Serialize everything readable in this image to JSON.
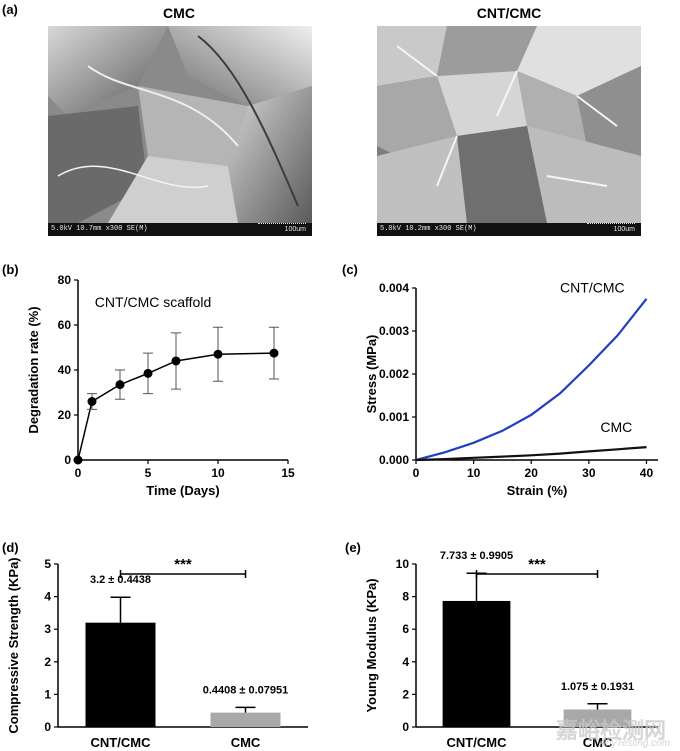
{
  "panel_a": {
    "label": "(a)",
    "images": [
      {
        "title": "CMC",
        "info": "5.0kV 10.7mm x300 SE(M)",
        "scale": "100um"
      },
      {
        "title": "CNT/CMC",
        "info": "5.0kV 10.2mm x300 SE(M)",
        "scale": "100um"
      }
    ]
  },
  "chart_data": [
    {
      "panel": "(b)",
      "type": "line",
      "annotation": "CNT/CMC scaffold",
      "xlabel": "Time (Days)",
      "ylabel": "Degradation rate (%)",
      "xlim": [
        0,
        15
      ],
      "ylim": [
        0,
        80
      ],
      "xticks": [
        0,
        5,
        10,
        15
      ],
      "yticks": [
        0,
        20,
        40,
        60,
        80
      ],
      "x": [
        0,
        1,
        3,
        5,
        7,
        10,
        14
      ],
      "y": [
        0,
        26,
        33.5,
        38.5,
        44,
        47,
        47.5
      ],
      "error": [
        0,
        3.5,
        6.5,
        9,
        12.5,
        12,
        11.5
      ],
      "color": "#000000"
    },
    {
      "panel": "(c)",
      "type": "line",
      "xlabel": "Strain (%)",
      "ylabel": "Stress (MPa)",
      "xlim": [
        0,
        42
      ],
      "ylim": [
        0,
        0.004
      ],
      "xticks": [
        0,
        10,
        20,
        30,
        40
      ],
      "yticks": [
        "0.000",
        "0.001",
        "0.002",
        "0.003",
        "0.004"
      ],
      "series": [
        {
          "name": "CNT/CMC",
          "color": "#1f3fc4",
          "x": [
            0,
            5,
            10,
            15,
            20,
            25,
            30,
            35,
            40
          ],
          "y": [
            0,
            0.00018,
            0.0004,
            0.00068,
            0.00105,
            0.00155,
            0.0022,
            0.0029,
            0.00375
          ]
        },
        {
          "name": "CMC",
          "color": "#111111",
          "x": [
            0,
            5,
            10,
            15,
            20,
            25,
            30,
            35,
            40
          ],
          "y": [
            0,
            2e-05,
            5e-05,
            8e-05,
            0.00011,
            0.00015,
            0.0002,
            0.00025,
            0.0003
          ]
        }
      ]
    },
    {
      "panel": "(d)",
      "type": "bar",
      "ylabel": "Compressive Strength (KPa)",
      "ylim": [
        0,
        5
      ],
      "yticks": [
        0,
        1,
        2,
        3,
        4,
        5
      ],
      "categories": [
        "CNT/CMC",
        "CMC"
      ],
      "values": [
        3.2,
        0.4408
      ],
      "error": [
        0.7816,
        0.16
      ],
      "value_labels": [
        "3.2 ± 0.4438",
        "0.4408 ± 0.07951"
      ],
      "colors": [
        "#000000",
        "#a8a8a8"
      ],
      "significance": "***"
    },
    {
      "panel": "(e)",
      "type": "bar",
      "ylabel": "Young Modulus (KPa)",
      "ylim": [
        0,
        10
      ],
      "yticks": [
        0,
        2,
        4,
        6,
        8,
        10
      ],
      "categories": [
        "CNT/CMC",
        "CMC"
      ],
      "values": [
        7.733,
        1.075
      ],
      "error": [
        1.7,
        0.35
      ],
      "value_labels": [
        "7.733 ± 0.9905",
        "1.075 ± 0.1931"
      ],
      "colors": [
        "#000000",
        "#a8a8a8"
      ],
      "significance": "***"
    }
  ],
  "watermark": {
    "text": "嘉峪检测网",
    "url": "AnyTesting.com"
  }
}
